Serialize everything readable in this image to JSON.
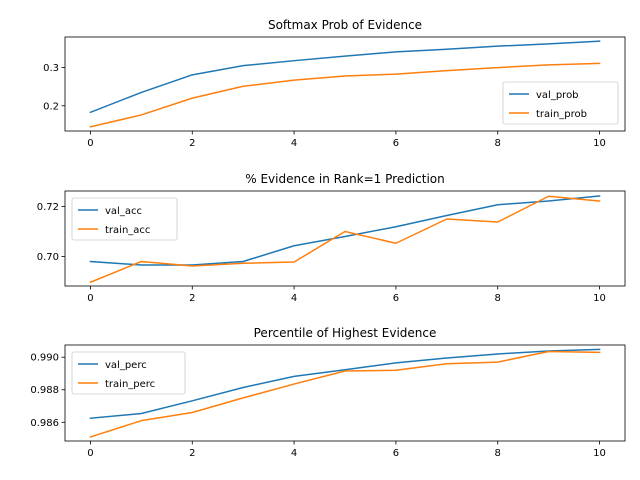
{
  "colors": {
    "val": "#1f77b4",
    "train": "#ff7f0e"
  },
  "chart_data": [
    {
      "type": "line",
      "title": "Softmax Prob of Evidence",
      "xlabel": "",
      "ylabel": "",
      "x": [
        0,
        1,
        2,
        3,
        4,
        5,
        6,
        7,
        8,
        9,
        10
      ],
      "xlim": [
        -0.5,
        10.5
      ],
      "ylim": [
        0.134,
        0.38
      ],
      "xticks": [
        0,
        2,
        4,
        6,
        8,
        10
      ],
      "xtick_labels": [
        "0",
        "2",
        "4",
        "6",
        "8",
        "10"
      ],
      "yticks": [
        0.2,
        0.3
      ],
      "ytick_labels": [
        "0.2",
        "0.3"
      ],
      "grid": false,
      "legend_position": "lower right",
      "series": [
        {
          "name": "val_prob",
          "color_key": "val",
          "values": [
            0.183,
            0.235,
            0.281,
            0.305,
            0.318,
            0.33,
            0.341,
            0.348,
            0.356,
            0.362,
            0.369
          ]
        },
        {
          "name": "train_prob",
          "color_key": "train",
          "values": [
            0.145,
            0.176,
            0.22,
            0.251,
            0.267,
            0.278,
            0.283,
            0.292,
            0.3,
            0.307,
            0.311
          ]
        }
      ]
    },
    {
      "type": "line",
      "title": "% Evidence in Rank=1 Prediction",
      "xlabel": "",
      "ylabel": "",
      "x": [
        0,
        1,
        2,
        3,
        4,
        5,
        6,
        7,
        8,
        9,
        10
      ],
      "xlim": [
        -0.5,
        10.5
      ],
      "ylim": [
        0.6882,
        0.7262
      ],
      "xticks": [
        0,
        2,
        4,
        6,
        8,
        10
      ],
      "xtick_labels": [
        "0",
        "2",
        "4",
        "6",
        "8",
        "10"
      ],
      "yticks": [
        0.7,
        0.72
      ],
      "ytick_labels": [
        "0.70",
        "0.72"
      ],
      "grid": false,
      "legend_position": "upper left",
      "series": [
        {
          "name": "val_acc",
          "color_key": "val",
          "values": [
            0.698,
            0.6966,
            0.6966,
            0.698,
            0.7043,
            0.708,
            0.7119,
            0.7164,
            0.7207,
            0.7222,
            0.7242
          ]
        },
        {
          "name": "train_acc",
          "color_key": "train",
          "values": [
            0.6897,
            0.698,
            0.6962,
            0.6973,
            0.6978,
            0.71,
            0.7053,
            0.715,
            0.7138,
            0.7241,
            0.7222
          ]
        }
      ]
    },
    {
      "type": "line",
      "title": "Percentile of Highest Evidence",
      "xlabel": "",
      "ylabel": "",
      "x": [
        0,
        1,
        2,
        3,
        4,
        5,
        6,
        7,
        8,
        9,
        10
      ],
      "xlim": [
        -0.5,
        10.5
      ],
      "ylim": [
        0.98485,
        0.99075
      ],
      "xticks": [
        0,
        2,
        4,
        6,
        8,
        10
      ],
      "xtick_labels": [
        "0",
        "2",
        "4",
        "6",
        "8",
        "10"
      ],
      "yticks": [
        0.986,
        0.988,
        0.99
      ],
      "ytick_labels": [
        "0.986",
        "0.988",
        "0.990"
      ],
      "grid": false,
      "legend_position": "upper left",
      "series": [
        {
          "name": "val_perc",
          "color_key": "val",
          "values": [
            0.98625,
            0.98654,
            0.98732,
            0.98814,
            0.98882,
            0.98923,
            0.98965,
            0.98995,
            0.9902,
            0.99038,
            0.99048
          ]
        },
        {
          "name": "train_perc",
          "color_key": "train",
          "values": [
            0.9851,
            0.9861,
            0.9866,
            0.9875,
            0.98835,
            0.98915,
            0.9892,
            0.9896,
            0.9897,
            0.99035,
            0.9903
          ]
        }
      ]
    }
  ]
}
